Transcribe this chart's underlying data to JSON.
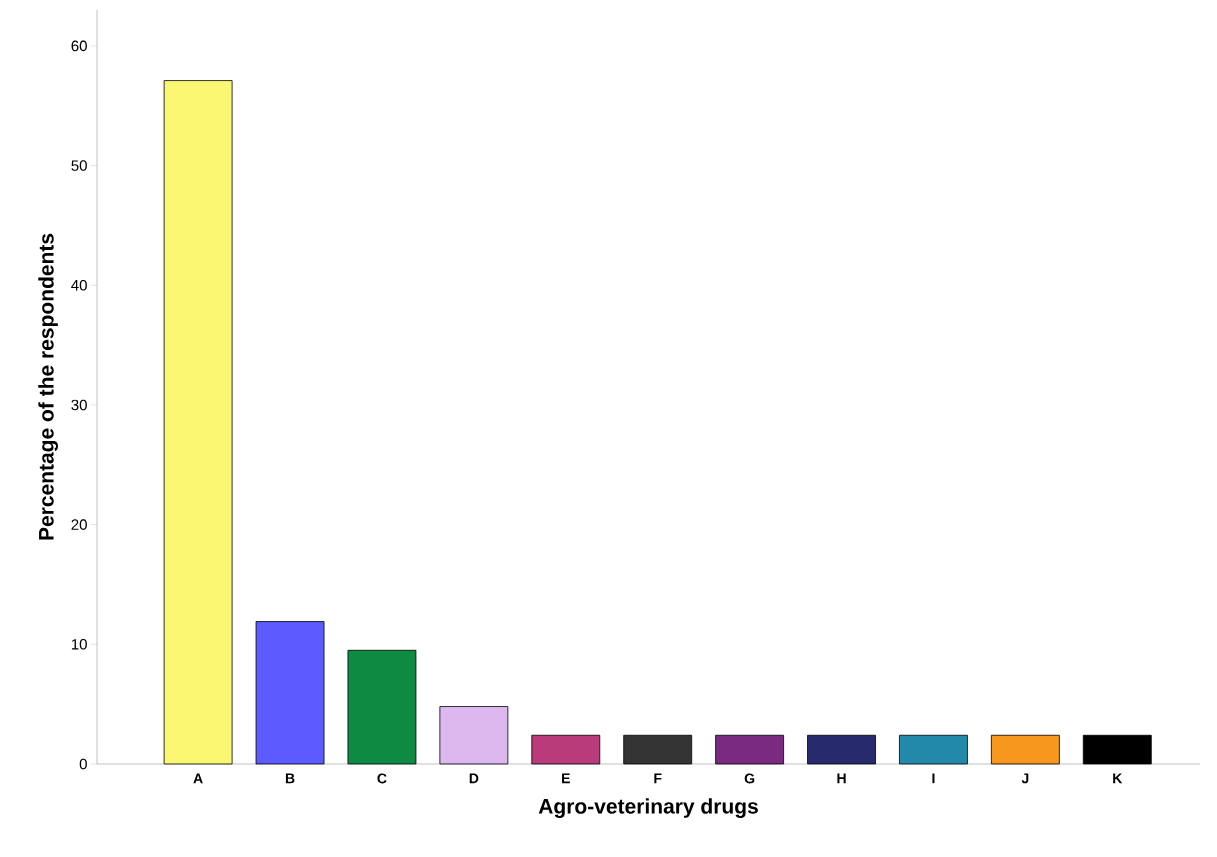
{
  "chart_data": {
    "type": "bar",
    "xlabel": "Agro-veterinary drugs",
    "ylabel": "Percentage of the respondents",
    "categories": [
      "A",
      "B",
      "C",
      "D",
      "E",
      "F",
      "G",
      "H",
      "I",
      "J",
      "K"
    ],
    "values": [
      57.1,
      11.9,
      9.5,
      4.8,
      2.4,
      2.4,
      2.4,
      2.4,
      2.4,
      2.4,
      2.4
    ],
    "colors": [
      "#faf772",
      "#5b5bff",
      "#0f8a43",
      "#dcb8ee",
      "#b93b7a",
      "#333333",
      "#7a2a80",
      "#282a6e",
      "#2389ab",
      "#f7971e",
      "#000000"
    ],
    "ylim": [
      0,
      63
    ],
    "yticks": [
      0,
      10,
      20,
      30,
      40,
      50,
      60
    ]
  }
}
